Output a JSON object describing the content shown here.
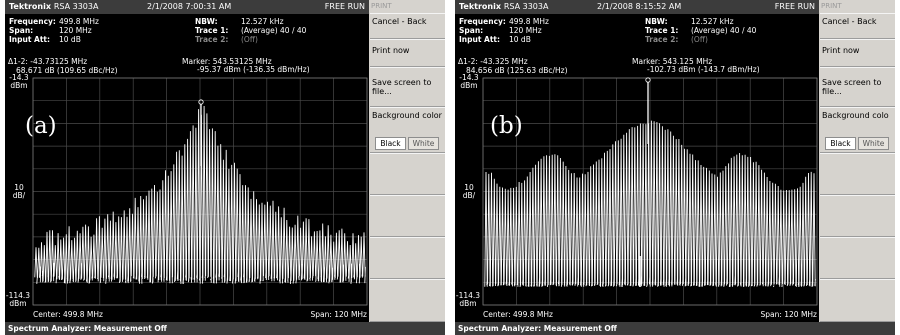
{
  "colors": {
    "screen": "#000000",
    "trace": "#ffffff",
    "grid": "#4a4a4a",
    "titlebar": "#3c3c3c",
    "sidebar": "#d6d3ce"
  },
  "panels": [
    {
      "overlay_label": "(a)",
      "titlebar": {
        "brand": "Tektronix",
        "model": "RSA 3303A",
        "datetime": "2/1/2008 7:00:31 AM",
        "mode": "FREE RUN"
      },
      "params": {
        "frequency_key": "Frequency:",
        "frequency_val": "499.8 MHz",
        "span_key": "Span:",
        "span_val": "120 MHz",
        "input_att_key": "Input Att:",
        "input_att_val": "10 dB",
        "nbw_key": "NBW:",
        "nbw_val": "12.527 kHz",
        "trace1_key": "Trace 1:",
        "trace1_val": "(Average)  40 / 40",
        "trace2_key": "Trace 2:",
        "trace2_val": "(Off)"
      },
      "marker": {
        "delta_label": "Δ1-2: -43.73125 MHz",
        "delta_detail": "68.671 dB (109.65 dBc/Hz)",
        "marker_label": "Marker: 543.53125 MHz",
        "marker_detail": "-95.37 dBm (-136.35 dBm/Hz)"
      },
      "axis": {
        "top_value": "-14.3",
        "top_unit": "dBm",
        "scale_value": "10",
        "scale_unit": "dB/",
        "bottom_value": "-114.3",
        "bottom_unit": "dBm",
        "center": "Center: 499.8 MHz",
        "span": "Span: 120 MHz"
      },
      "status": "Spectrum Analyzer: Measurement Off",
      "sidebar": {
        "header": "PRINT",
        "cancel": "Cancel - Back",
        "print_now": "Print now",
        "save": "Save screen to file...",
        "background": "Background color",
        "black": "Black",
        "white": "White"
      }
    },
    {
      "overlay_label": "(b)",
      "titlebar": {
        "brand": "Tektronix",
        "model": "RSA 3303A",
        "datetime": "2/1/2008 8:15:52 AM",
        "mode": "FREE RUN"
      },
      "params": {
        "frequency_key": "Frequency:",
        "frequency_val": "499.8 MHz",
        "span_key": "Span:",
        "span_val": "120 MHz",
        "input_att_key": "Input Att:",
        "input_att_val": "10 dB",
        "nbw_key": "NBW:",
        "nbw_val": "12.527 kHz",
        "trace1_key": "Trace 1:",
        "trace1_val": "(Average)  40 / 40",
        "trace2_key": "Trace 2:",
        "trace2_val": "(Off)"
      },
      "marker": {
        "delta_label": "Δ1-2: -43.325 MHz",
        "delta_detail": "84.656 dB (125.63 dBc/Hz)",
        "marker_label": "Marker: 543.125 MHz",
        "marker_detail": "-102.73 dBm (-143.7 dBm/Hz)"
      },
      "axis": {
        "top_value": "-14.3",
        "top_unit": "dBm",
        "scale_value": "10",
        "scale_unit": "dB/",
        "bottom_value": "-114.3",
        "bottom_unit": "dBm",
        "center": "Center: 499.8 MHz",
        "span": "Span: 120 MHz"
      },
      "status": "Spectrum Analyzer: Measurement Off",
      "sidebar": {
        "header": "PRINT",
        "cancel": "Cancel - Back",
        "print_now": "Print now",
        "save": "Save screen to file...",
        "background": "Background colo",
        "black": "Black",
        "white": "White"
      }
    }
  ]
}
